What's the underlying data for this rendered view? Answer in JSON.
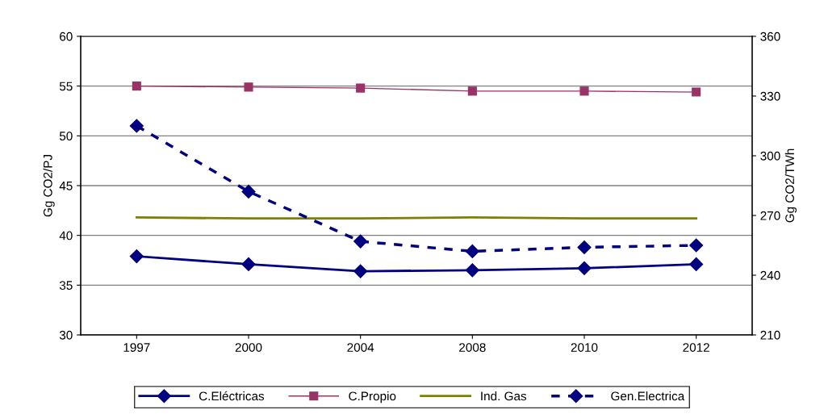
{
  "chart_data": {
    "type": "line",
    "ylabel": "Gg CO2/PJ",
    "y2label": "Gg CO2/TWh",
    "categories": [
      "1997",
      "2000",
      "2004",
      "2008",
      "2010",
      "2012"
    ],
    "series": [
      {
        "name": "C.Eléctricas",
        "color": "#000080",
        "marker": "diamond",
        "line_style": "solid",
        "values": [
          37.9,
          37.1,
          36.4,
          36.5,
          36.7,
          37.1
        ]
      },
      {
        "name": "C.Propio",
        "color": "#993366",
        "marker": "square",
        "line_style": "solid",
        "values": [
          55.0,
          54.9,
          54.8,
          54.5,
          54.5,
          54.4
        ]
      },
      {
        "name": "Ind. Gas",
        "color": "#808000",
        "marker": "none",
        "line_style": "solid",
        "values": [
          41.8,
          41.7,
          41.7,
          41.8,
          41.7,
          41.7
        ]
      },
      {
        "name": "Gen.Electrica",
        "color": "#000080",
        "marker": "diamond",
        "line_style": "dashed",
        "axis": "y2",
        "values": [
          315,
          282,
          257,
          252,
          254,
          255
        ]
      }
    ],
    "ylim": [
      30,
      60
    ],
    "yticks": [
      30,
      35,
      40,
      45,
      50,
      55,
      60
    ],
    "y2lim": [
      210,
      360
    ],
    "y2ticks": [
      210,
      240,
      270,
      300,
      330,
      360
    ],
    "grid": "y",
    "legend": "bottom"
  }
}
